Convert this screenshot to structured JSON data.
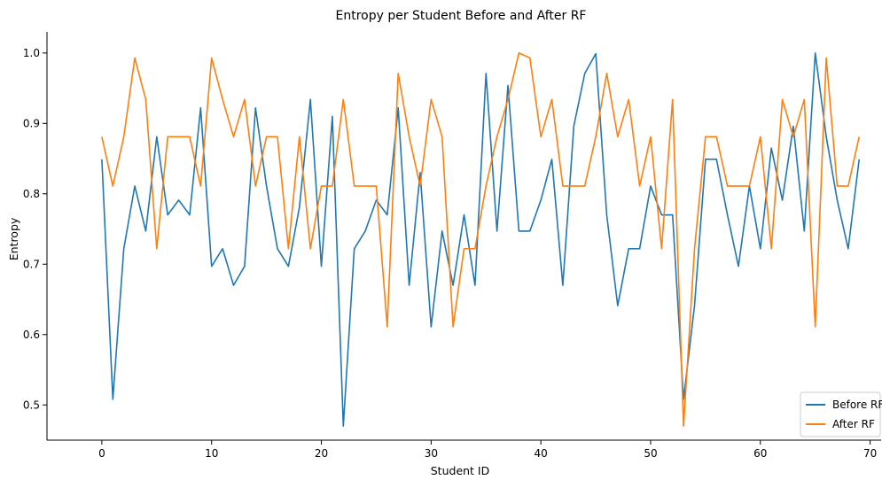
{
  "chart_data": {
    "type": "line",
    "title": "Entropy per Student Before and After RF",
    "xlabel": "Student ID",
    "ylabel": "Entropy",
    "xlim": [
      -5,
      71
    ],
    "ylim": [
      0.45,
      1.03
    ],
    "xticks": [
      0,
      10,
      20,
      30,
      40,
      50,
      60,
      70
    ],
    "yticks": [
      0.5,
      0.6,
      0.7,
      0.8,
      0.9,
      1.0
    ],
    "grid": false,
    "legend": "lower-right",
    "x": [
      0,
      1,
      2,
      3,
      4,
      5,
      6,
      7,
      8,
      9,
      10,
      11,
      12,
      13,
      14,
      15,
      16,
      17,
      18,
      19,
      20,
      21,
      22,
      23,
      24,
      25,
      26,
      27,
      28,
      29,
      30,
      31,
      32,
      33,
      34,
      35,
      36,
      37,
      38,
      39,
      40,
      41,
      42,
      43,
      44,
      45,
      46,
      47,
      48,
      49,
      50,
      51,
      52,
      53,
      54,
      55,
      56,
      57,
      58,
      59,
      60,
      61,
      62,
      63,
      64,
      65,
      66,
      67,
      68,
      69
    ],
    "series": [
      {
        "name": "Before RF",
        "color": "#1f77b4",
        "values": [
          0.849,
          0.508,
          0.722,
          0.811,
          0.747,
          0.881,
          0.77,
          0.791,
          0.77,
          0.922,
          0.697,
          0.722,
          0.67,
          0.697,
          0.922,
          0.811,
          0.722,
          0.697,
          0.781,
          0.934,
          0.697,
          0.91,
          0.47,
          0.722,
          0.747,
          0.791,
          0.77,
          0.922,
          0.67,
          0.83,
          0.611,
          0.747,
          0.67,
          0.77,
          0.67,
          0.971,
          0.747,
          0.954,
          0.747,
          0.747,
          0.791,
          0.849,
          0.67,
          0.896,
          0.971,
          0.999,
          0.77,
          0.641,
          0.722,
          0.722,
          0.811,
          0.77,
          0.77,
          0.508,
          0.641,
          0.849,
          0.849,
          0.77,
          0.697,
          0.811,
          0.722,
          0.865,
          0.791,
          0.896,
          0.747,
          1.0,
          0.881,
          0.791,
          0.722,
          0.849
        ]
      },
      {
        "name": "After RF",
        "color": "#ff7f0e",
        "values": [
          0.881,
          0.811,
          0.881,
          0.993,
          0.934,
          0.722,
          0.881,
          0.881,
          0.881,
          0.811,
          0.993,
          0.934,
          0.881,
          0.934,
          0.811,
          0.881,
          0.881,
          0.722,
          0.881,
          0.722,
          0.811,
          0.811,
          0.934,
          0.811,
          0.811,
          0.811,
          0.611,
          0.971,
          0.881,
          0.811,
          0.934,
          0.881,
          0.611,
          0.722,
          0.722,
          0.811,
          0.881,
          0.934,
          1.0,
          0.993,
          0.881,
          0.934,
          0.811,
          0.811,
          0.811,
          0.881,
          0.971,
          0.881,
          0.934,
          0.811,
          0.881,
          0.722,
          0.934,
          0.47,
          0.722,
          0.881,
          0.881,
          0.811,
          0.811,
          0.811,
          0.881,
          0.722,
          0.934,
          0.881,
          0.934,
          0.611,
          0.993,
          0.811,
          0.811,
          0.881
        ]
      }
    ]
  }
}
